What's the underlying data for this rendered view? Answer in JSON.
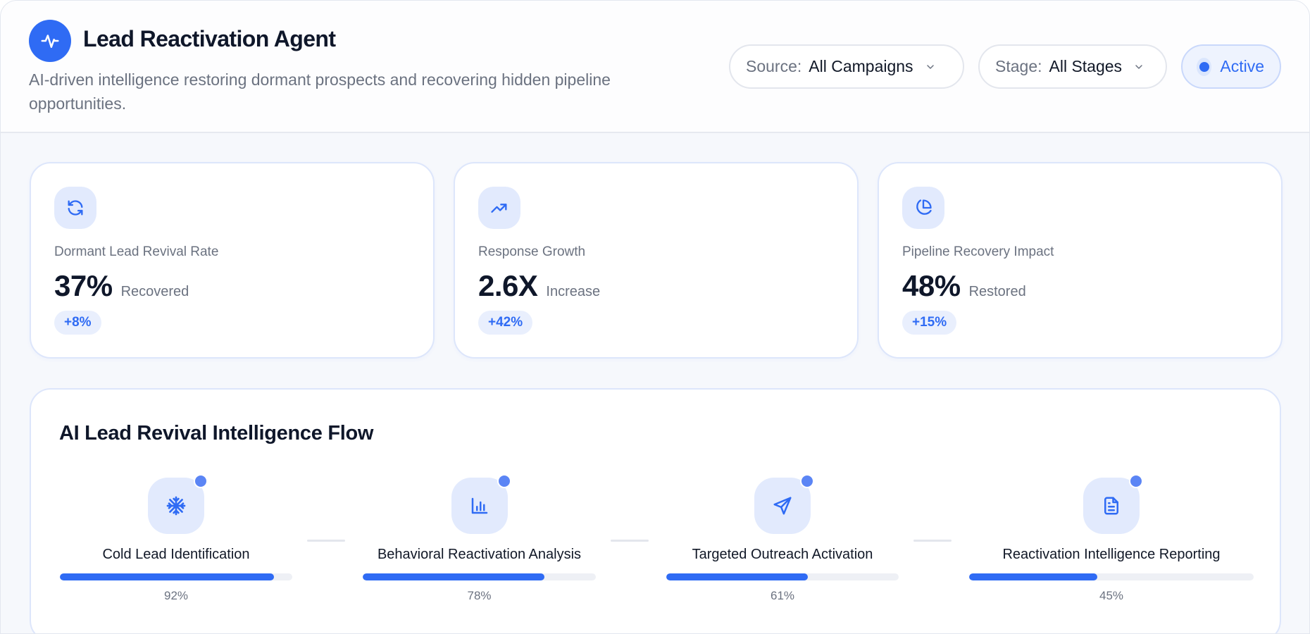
{
  "header": {
    "title": "Lead Reactivation Agent",
    "subtitle": "AI-driven intelligence restoring dormant prospects and recovering hidden pipeline opportunities.",
    "logo_icon": "activity-pulse-icon"
  },
  "filters": {
    "source": {
      "label": "Source:",
      "value": "All Campaigns"
    },
    "stage": {
      "label": "Stage:",
      "value": "All Stages"
    },
    "status": {
      "label": "Active"
    }
  },
  "stats": [
    {
      "icon": "refresh-icon",
      "label": "Dormant Lead Revival Rate",
      "value": "37%",
      "unit": "Recovered",
      "delta": "+8%"
    },
    {
      "icon": "trending-up-icon",
      "label": "Response Growth",
      "value": "2.6X",
      "unit": "Increase",
      "delta": "+42%"
    },
    {
      "icon": "pie-chart-icon",
      "label": "Pipeline Recovery Impact",
      "value": "48%",
      "unit": "Restored",
      "delta": "+15%"
    }
  ],
  "flow": {
    "title": "AI Lead Revival Intelligence Flow",
    "steps": [
      {
        "icon": "snowflake-icon",
        "label": "Cold Lead Identification",
        "progress": 92,
        "progress_label": "92%"
      },
      {
        "icon": "bar-chart-icon",
        "label": "Behavioral Reactivation Analysis",
        "progress": 78,
        "progress_label": "78%"
      },
      {
        "icon": "send-icon",
        "label": "Targeted Outreach Activation",
        "progress": 61,
        "progress_label": "61%"
      },
      {
        "icon": "file-text-icon",
        "label": "Reactivation Intelligence Reporting",
        "progress": 45,
        "progress_label": "45%"
      }
    ]
  },
  "colors": {
    "accent": "#2f6bf4",
    "accent_soft": "#e2eafd",
    "text_primary": "#0f172a",
    "text_secondary": "#6b7280",
    "track": "#eef0f5"
  }
}
